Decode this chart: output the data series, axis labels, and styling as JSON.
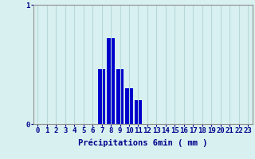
{
  "hours": [
    0,
    1,
    2,
    3,
    4,
    5,
    6,
    7,
    8,
    9,
    10,
    11,
    12,
    13,
    14,
    15,
    16,
    17,
    18,
    19,
    20,
    21,
    22,
    23
  ],
  "values": [
    0,
    0,
    0,
    0,
    0,
    0,
    0,
    0.46,
    0.72,
    0.46,
    0.3,
    0.2,
    0,
    0,
    0,
    0,
    0,
    0,
    0,
    0,
    0,
    0,
    0,
    0
  ],
  "bar_color": "#0000cc",
  "background_color": "#d8f0f0",
  "grid_color": "#b8d8d8",
  "axis_label_color": "#00008b",
  "tick_color": "#00008b",
  "xlabel": "Précipitations 6min ( mm )",
  "ylim": [
    0,
    1
  ],
  "xlim": [
    -0.5,
    23.5
  ],
  "yticks": [
    0,
    1
  ],
  "xlabel_fontsize": 7.5,
  "tick_fontsize": 6.5
}
